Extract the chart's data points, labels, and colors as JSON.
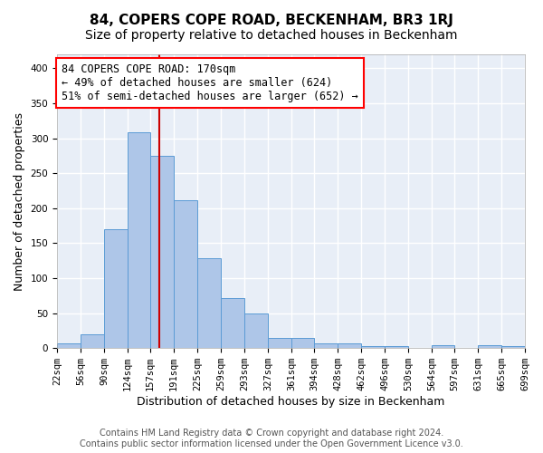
{
  "title": "84, COPERS COPE ROAD, BECKENHAM, BR3 1RJ",
  "subtitle": "Size of property relative to detached houses in Beckenham",
  "xlabel": "Distribution of detached houses by size in Beckenham",
  "ylabel": "Number of detached properties",
  "footer_line1": "Contains HM Land Registry data © Crown copyright and database right 2024.",
  "footer_line2": "Contains public sector information licensed under the Open Government Licence v3.0.",
  "annotation_line1": "84 COPERS COPE ROAD: 170sqm",
  "annotation_line2": "← 49% of detached houses are smaller (624)",
  "annotation_line3": "51% of semi-detached houses are larger (652) →",
  "property_size": 170,
  "bin_edges": [
    22,
    56,
    90,
    124,
    157,
    191,
    225,
    259,
    293,
    327,
    361,
    394,
    428,
    462,
    496,
    530,
    564,
    597,
    631,
    665,
    699
  ],
  "bar_heights": [
    7,
    20,
    170,
    308,
    275,
    212,
    128,
    72,
    49,
    14,
    14,
    7,
    7,
    3,
    3,
    0,
    4,
    0,
    4,
    3
  ],
  "bar_color": "#aec6e8",
  "bar_edge_color": "#5b9bd5",
  "vline_color": "#cc0000",
  "vline_x": 170,
  "background_color": "#e8eef7",
  "grid_color": "#ffffff",
  "title_fontsize": 11,
  "subtitle_fontsize": 10,
  "annotation_fontsize": 8.5,
  "tick_fontsize": 7.5,
  "xlabel_fontsize": 9,
  "ylabel_fontsize": 9,
  "footer_fontsize": 7,
  "ylim": [
    0,
    420
  ],
  "yticks": [
    0,
    50,
    100,
    150,
    200,
    250,
    300,
    350,
    400
  ]
}
